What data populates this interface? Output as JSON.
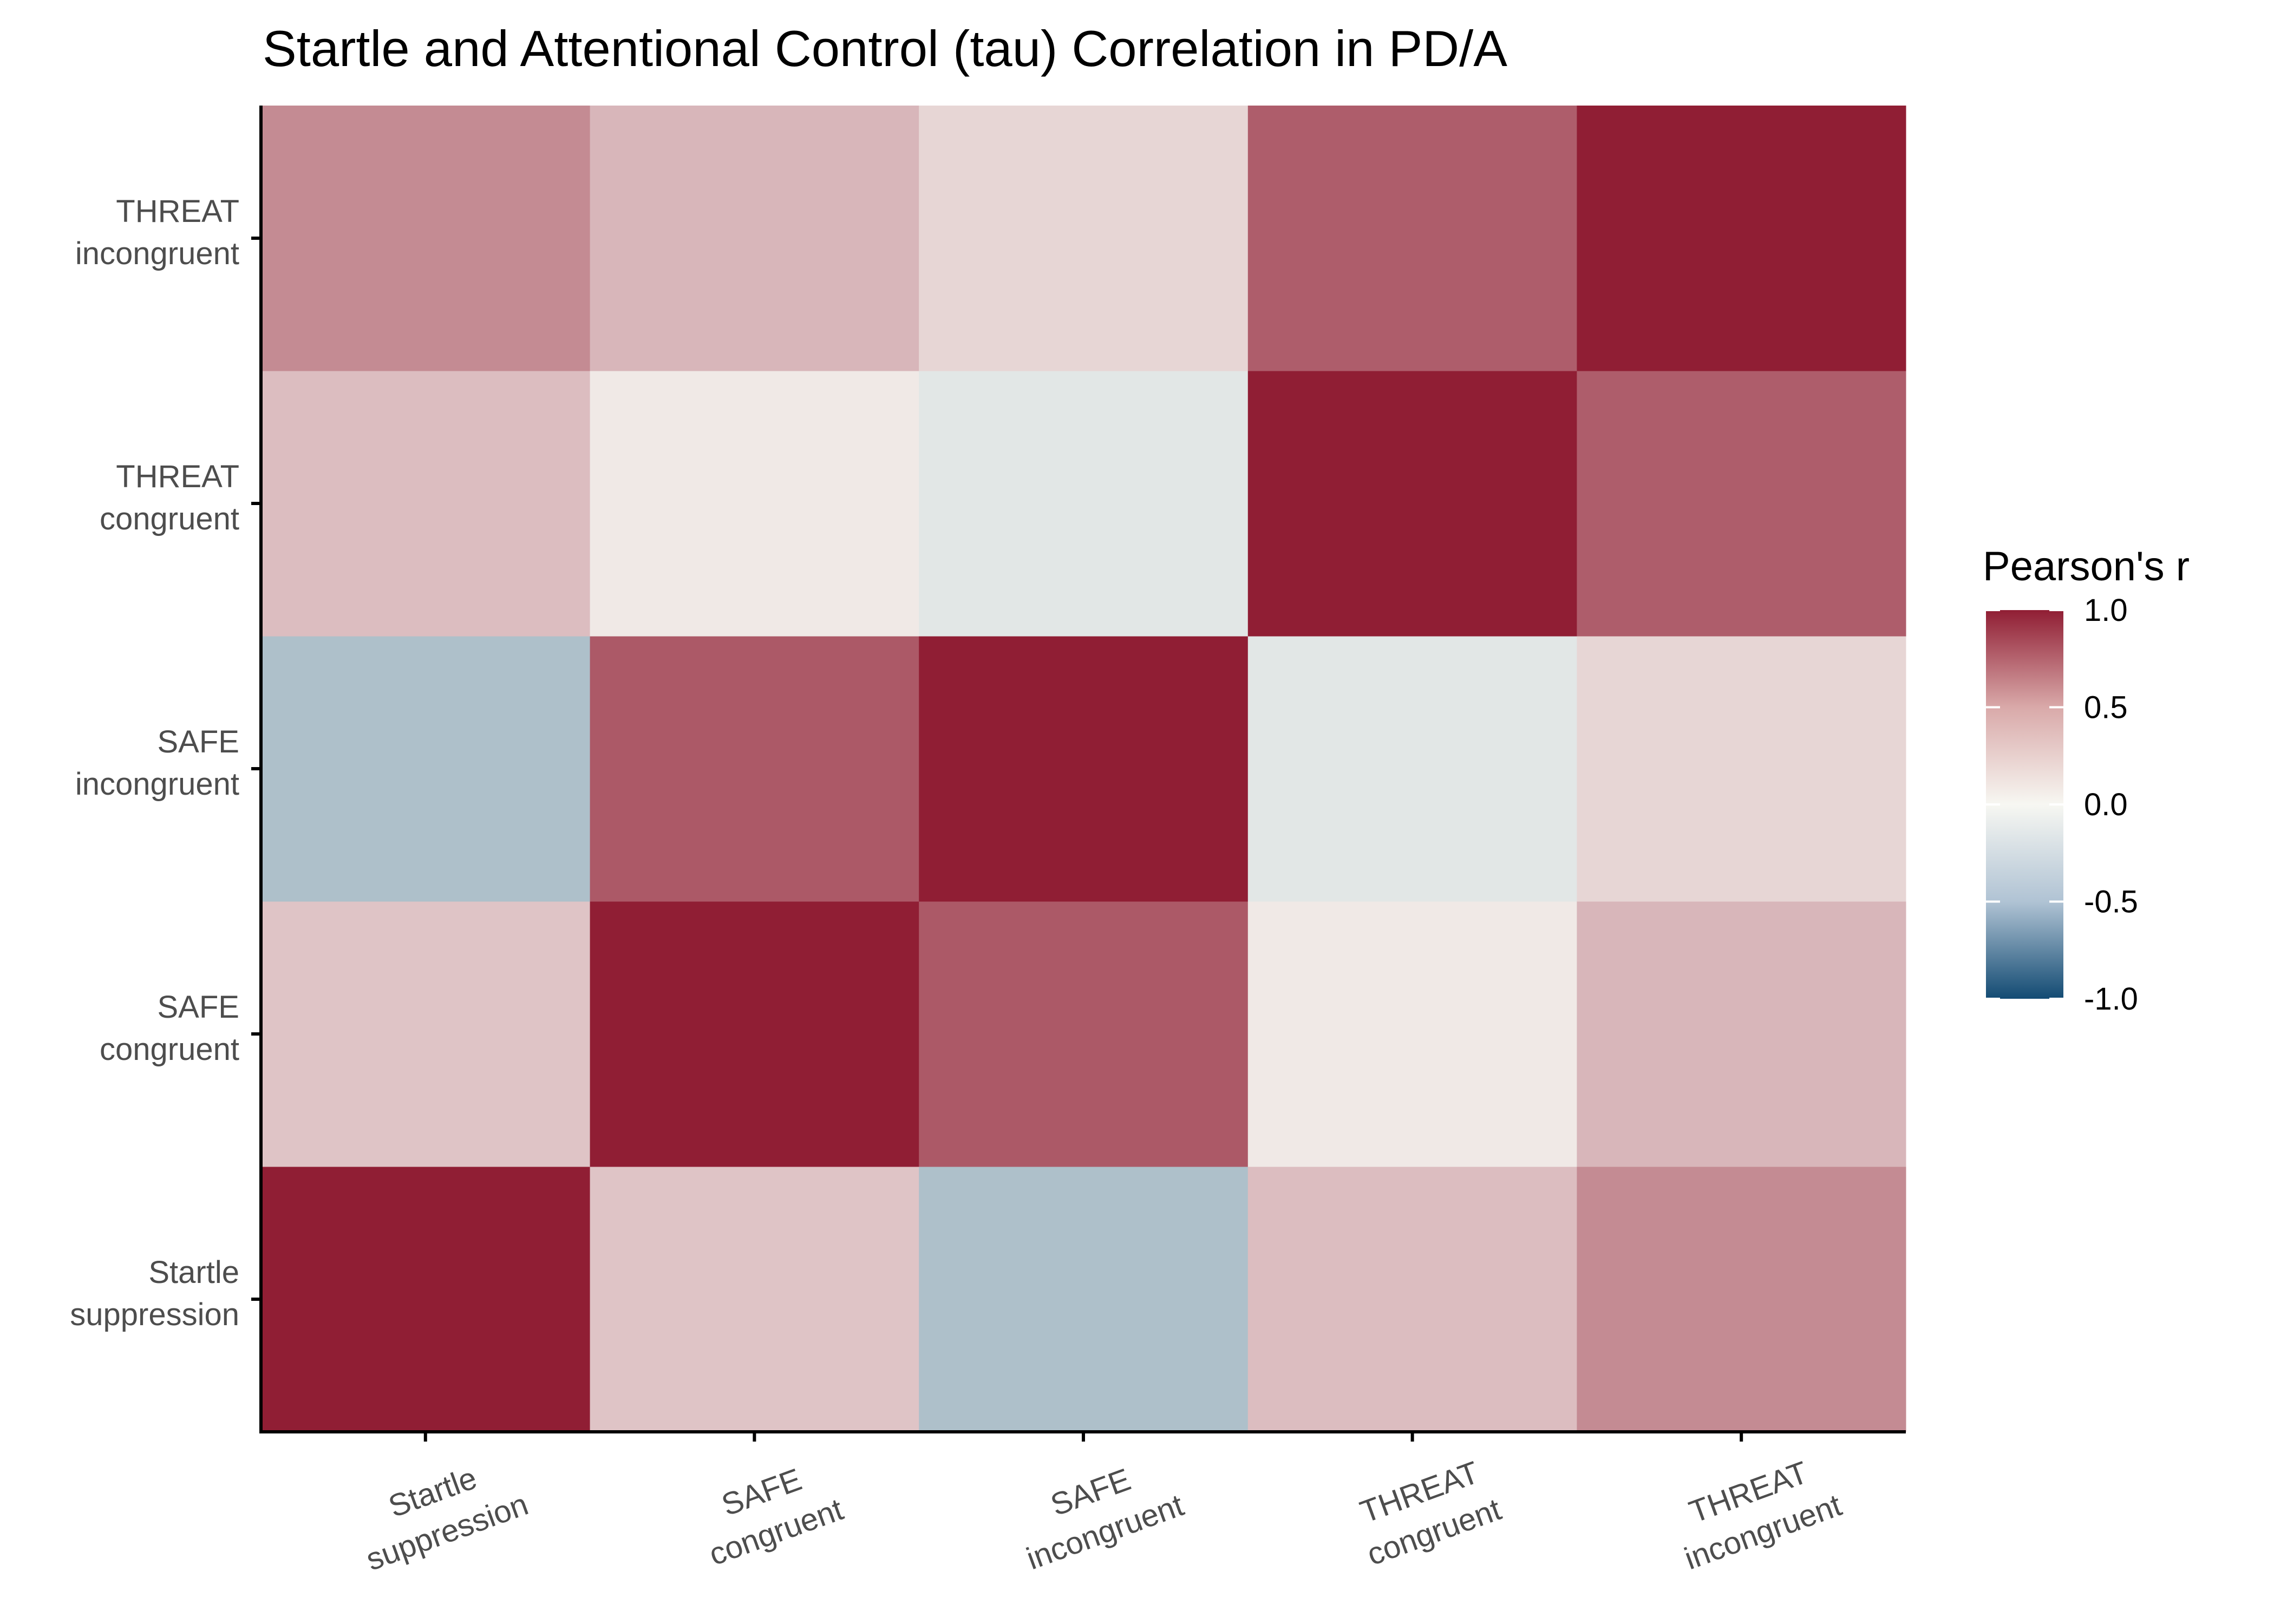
{
  "chart_data": {
    "type": "heatmap",
    "title": "Startle and Attentional Control (tau) Correlation in PD/A",
    "xlabel": "",
    "ylabel": "",
    "x_categories": [
      [
        "Startle",
        "suppression"
      ],
      [
        "SAFE",
        "congruent"
      ],
      [
        "SAFE",
        "incongruent"
      ],
      [
        "THREAT",
        "congruent"
      ],
      [
        "THREAT",
        "incongruent"
      ]
    ],
    "y_categories": [
      [
        "Startle",
        "suppression"
      ],
      [
        "SAFE",
        "congruent"
      ],
      [
        "SAFE",
        "incongruent"
      ],
      [
        "THREAT",
        "congruent"
      ],
      [
        "THREAT",
        "incongruent"
      ]
    ],
    "values": [
      [
        1.0,
        0.18,
        -0.26,
        0.21,
        0.44
      ],
      [
        0.18,
        1.0,
        0.69,
        0.04,
        0.24
      ],
      [
        -0.26,
        0.69,
        1.0,
        -0.06,
        0.11
      ],
      [
        0.21,
        0.04,
        -0.06,
        1.0,
        0.67
      ],
      [
        0.44,
        0.24,
        0.11,
        0.67,
        1.0
      ]
    ],
    "legend": {
      "title": "Pearson's r",
      "placement": "right",
      "range": [
        -1.0,
        1.0
      ],
      "ticks": [
        1.0,
        0.5,
        0.0,
        -0.5,
        -1.0
      ],
      "tick_labels": [
        "1.0",
        "0.5",
        "0.0",
        "-0.5",
        "-1.0"
      ]
    },
    "colors": {
      "low": "#134B73",
      "mid": "#F7F7F2",
      "high": "#901E34"
    },
    "grid": false
  }
}
